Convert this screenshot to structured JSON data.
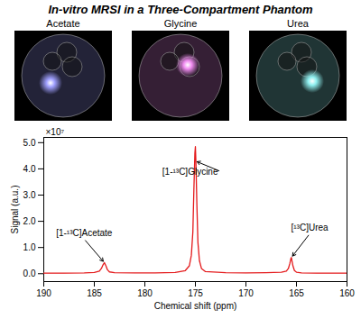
{
  "title": "In-vitro MRSI in a Three-Compartment Phantom",
  "panels": [
    {
      "label": "Acetate",
      "color": "#a0a0ff"
    },
    {
      "label": "Glycine",
      "color": "#f08cf0"
    },
    {
      "label": "Urea",
      "color": "#90f0f0"
    }
  ],
  "chart_data": {
    "type": "line",
    "xlabel": "Chemical shift (ppm)",
    "ylabel": "Signal (a.u.)",
    "y_exponent": "×10⁷",
    "x": [
      190,
      188,
      186,
      185,
      184.5,
      184.3,
      184.15,
      184.0,
      183.85,
      183.7,
      183.5,
      183,
      181,
      179,
      177,
      176,
      175.6,
      175.4,
      175.25,
      175.15,
      175.05,
      175.0,
      174.95,
      174.85,
      174.75,
      174.6,
      174.4,
      174,
      172,
      170,
      168,
      166.5,
      166,
      165.8,
      165.65,
      165.55,
      165.5,
      165.45,
      165.35,
      165.2,
      165,
      164.5,
      163,
      161,
      160
    ],
    "values": [
      0.02,
      0.02,
      0.03,
      0.05,
      0.1,
      0.2,
      0.33,
      0.42,
      0.3,
      0.15,
      0.07,
      0.04,
      0.03,
      0.03,
      0.05,
      0.12,
      0.3,
      0.7,
      1.6,
      3.2,
      4.6,
      4.85,
      4.3,
      2.6,
      1.2,
      0.5,
      0.2,
      0.08,
      0.04,
      0.03,
      0.04,
      0.06,
      0.1,
      0.2,
      0.4,
      0.58,
      0.62,
      0.5,
      0.3,
      0.12,
      0.06,
      0.03,
      0.02,
      0.02,
      0.02
    ],
    "color": "#e41a1c",
    "xlim": [
      190,
      160
    ],
    "xticks": [
      190,
      185,
      180,
      175,
      170,
      165,
      160
    ],
    "ylim": [
      -0.3,
      5.2
    ],
    "yticks": [
      0,
      1,
      2,
      3,
      4,
      5
    ],
    "grid": false,
    "annotations": [
      {
        "text": "[1-¹³C]Acetate",
        "x": 184.0,
        "y": 0.42
      },
      {
        "text": "[1-¹³C]Glycine",
        "x": 175.0,
        "y": 4.3
      },
      {
        "text": "[¹³C]Urea",
        "x": 165.5,
        "y": 0.62
      }
    ]
  }
}
